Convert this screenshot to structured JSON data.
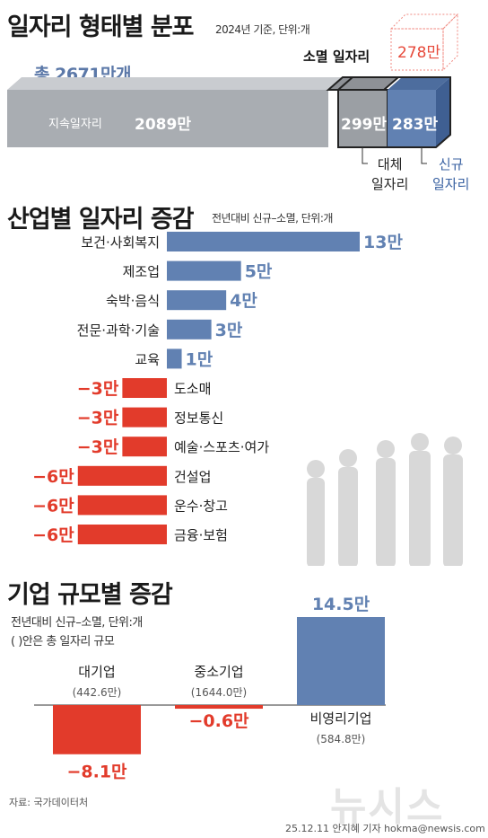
{
  "header": {
    "title": "일자리 형태별 분포",
    "subtitle": "2024년 기준, 단위:개"
  },
  "composition": {
    "total_label": "총 2671만개",
    "sustained_label": "지속일자리",
    "sustained_value": "2089만",
    "replaced_value": "299만",
    "new_value": "283만",
    "replaced_label": [
      "대체",
      "일자리"
    ],
    "new_label": [
      "신규",
      "일자리"
    ],
    "extinct_label": "소멸 일자리",
    "extinct_value": "278만",
    "colors": {
      "sustained": "#a9adb2",
      "replaced": "#9b9fa4",
      "new": "#6181b2",
      "extinct": "#e74a3b"
    }
  },
  "industry": {
    "title": "산업별 일자리 증감",
    "subtitle": "전년대비 신규–소멸, 단위:개"
  },
  "size": {
    "title": "기업 규모별 증감",
    "subtitle1": "전년대비 신규–소멸, 단위:개",
    "subtitle2": "( )안은 총 일자리 규모"
  },
  "chart_data": [
    {
      "type": "bar",
      "orientation": "horizontal",
      "title": "산업별 일자리 증감",
      "unit": "만개",
      "categories": [
        "보건·사회복지",
        "제조업",
        "숙박·음식",
        "전문·과학·기술",
        "교육",
        "도소매",
        "정보통신",
        "예술·스포츠·여가",
        "건설업",
        "운수·창고",
        "금융·보험"
      ],
      "values": [
        13,
        5,
        4,
        3,
        1,
        -3,
        -3,
        -3,
        -6,
        -6,
        -6
      ],
      "value_labels": [
        "13만",
        "5만",
        "4만",
        "3만",
        "1만",
        "−3만",
        "−3만",
        "−3만",
        "−6만",
        "−6만",
        "−6만"
      ],
      "colors": {
        "positive": "#6181b2",
        "negative": "#e23b2b"
      }
    },
    {
      "type": "bar",
      "title": "기업 규모별 증감",
      "unit": "만개",
      "categories": [
        "대기업",
        "중소기업",
        "비영리기업"
      ],
      "category_totals": [
        "(442.6만)",
        "(1644.0만)",
        "(584.8만)"
      ],
      "values": [
        -8.1,
        -0.6,
        14.5
      ],
      "value_labels": [
        "−8.1만",
        "−0.6만",
        "14.5만"
      ],
      "colors": {
        "positive": "#6181b2",
        "negative": "#e23b2b"
      }
    }
  ],
  "footer": {
    "source": "자료: 국가데이터처",
    "credit": "25.12.11 안지혜 기자 hokma@newsis.com",
    "logo": "뉴시스"
  }
}
